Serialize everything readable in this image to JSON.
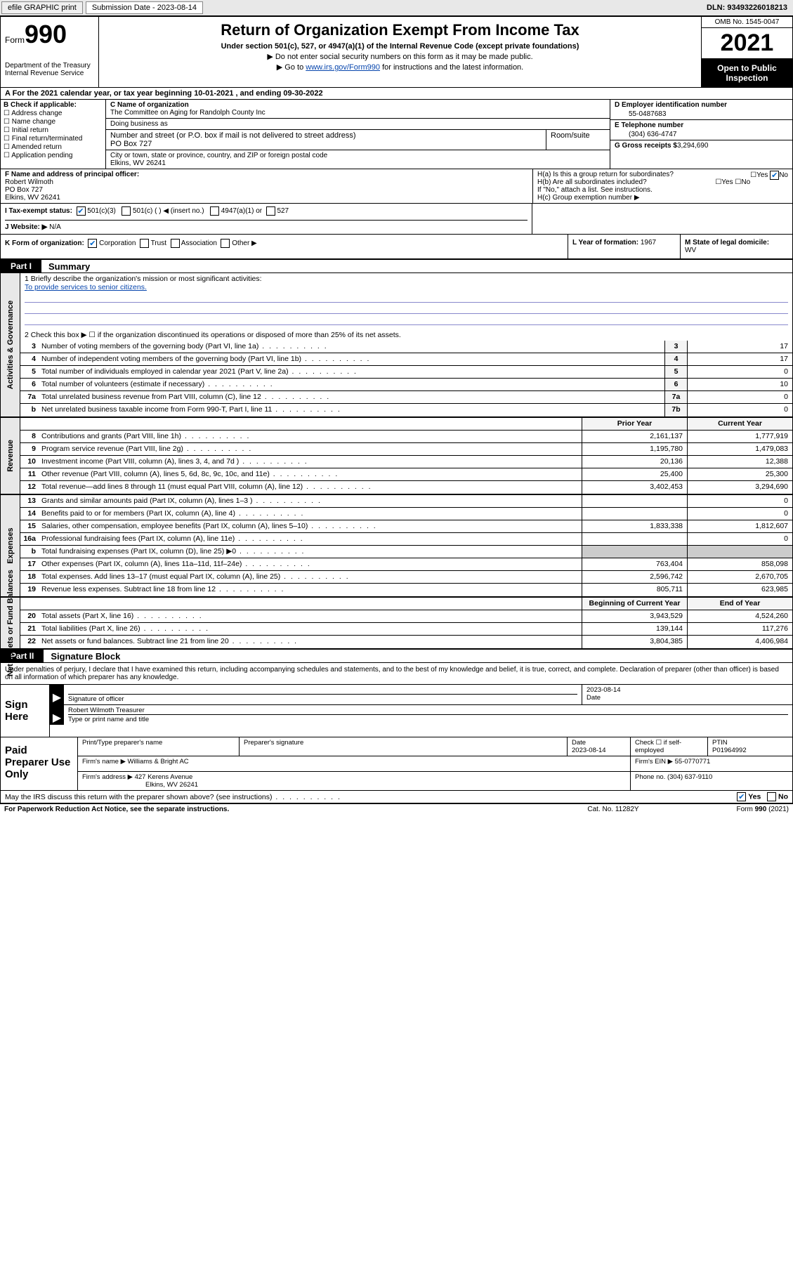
{
  "topbar": {
    "efile": "efile GRAPHIC print",
    "submission_label": "Submission Date - 2023-08-14",
    "dln": "DLN: 93493226018213"
  },
  "header": {
    "form_label": "Form",
    "form_number": "990",
    "dept": "Department of the Treasury",
    "irs": "Internal Revenue Service",
    "title": "Return of Organization Exempt From Income Tax",
    "sub1": "Under section 501(c), 527, or 4947(a)(1) of the Internal Revenue Code (except private foundations)",
    "sub2": "Do not enter social security numbers on this form as it may be made public.",
    "sub3_pre": "Go to ",
    "sub3_link": "www.irs.gov/Form990",
    "sub3_post": " for instructions and the latest information.",
    "omb": "OMB No. 1545-0047",
    "year": "2021",
    "open": "Open to Public Inspection"
  },
  "row_a": "A For the 2021 calendar year, or tax year beginning 10-01-2021   , and ending 09-30-2022",
  "col_b": {
    "label": "B Check if applicable:",
    "items": [
      "Address change",
      "Name change",
      "Initial return",
      "Final return/terminated",
      "Amended return",
      "Application pending"
    ]
  },
  "col_c": {
    "name_label": "C Name of organization",
    "name": "The Committee on Aging for Randolph County Inc",
    "dba_label": "Doing business as",
    "dba": "",
    "street_label": "Number and street (or P.O. box if mail is not delivered to street address)",
    "room_label": "Room/suite",
    "street": "PO Box 727",
    "city_label": "City or town, state or province, country, and ZIP or foreign postal code",
    "city": "Elkins, WV  26241"
  },
  "col_d": {
    "d_label": "D Employer identification number",
    "d_val": "55-0487683",
    "e_label": "E Telephone number",
    "e_val": "(304) 636-4747",
    "g_label": "G Gross receipts $",
    "g_val": "3,294,690"
  },
  "col_f": {
    "label": "F Name and address of principal officer:",
    "name": "Robert Wilmoth",
    "street": "PO Box 727",
    "city": "Elkins, WV  26241"
  },
  "col_h": {
    "ha": "H(a)  Is this a group return for subordinates?",
    "hb": "H(b)  Are all subordinates included?",
    "hb_note": "If \"No,\" attach a list. See instructions.",
    "hc": "H(c)  Group exemption number ▶"
  },
  "row_i": {
    "label": "I   Tax-exempt status:",
    "opt1": "501(c)(3)",
    "opt2": "501(c) (  ) ◀ (insert no.)",
    "opt3": "4947(a)(1) or",
    "opt4": "527"
  },
  "row_j": {
    "label": "J   Website: ▶",
    "val": "N/A"
  },
  "row_k": {
    "label": "K Form of organization:",
    "opts": [
      "Corporation",
      "Trust",
      "Association",
      "Other ▶"
    ],
    "l_label": "L Year of formation:",
    "l_val": "1967",
    "m_label": "M State of legal domicile:",
    "m_val": "WV"
  },
  "part1": {
    "box": "Part I",
    "title": "Summary"
  },
  "tabs": {
    "gov": "Activities & Governance",
    "rev": "Revenue",
    "exp": "Expenses",
    "net": "Net Assets or Fund Balances"
  },
  "mission": {
    "q1": "1  Briefly describe the organization's mission or most significant activities:",
    "text": "To provide services to senior citizens.",
    "q2": "2   Check this box ▶ ☐  if the organization discontinued its operations or disposed of more than 25% of its net assets."
  },
  "gov_rows": [
    {
      "n": "3",
      "d": "Number of voting members of the governing body (Part VI, line 1a)",
      "b": "3",
      "v": "17"
    },
    {
      "n": "4",
      "d": "Number of independent voting members of the governing body (Part VI, line 1b)",
      "b": "4",
      "v": "17"
    },
    {
      "n": "5",
      "d": "Total number of individuals employed in calendar year 2021 (Part V, line 2a)",
      "b": "5",
      "v": "0"
    },
    {
      "n": "6",
      "d": "Total number of volunteers (estimate if necessary)",
      "b": "6",
      "v": "10"
    },
    {
      "n": "7a",
      "d": "Total unrelated business revenue from Part VIII, column (C), line 12",
      "b": "7a",
      "v": "0"
    },
    {
      "n": "b",
      "d": "Net unrelated business taxable income from Form 990-T, Part I, line 11",
      "b": "7b",
      "v": "0"
    }
  ],
  "two_col_hdr": {
    "prior": "Prior Year",
    "curr": "Current Year"
  },
  "rev_rows": [
    {
      "n": "8",
      "d": "Contributions and grants (Part VIII, line 1h)",
      "p": "2,161,137",
      "c": "1,777,919"
    },
    {
      "n": "9",
      "d": "Program service revenue (Part VIII, line 2g)",
      "p": "1,195,780",
      "c": "1,479,083"
    },
    {
      "n": "10",
      "d": "Investment income (Part VIII, column (A), lines 3, 4, and 7d )",
      "p": "20,136",
      "c": "12,388"
    },
    {
      "n": "11",
      "d": "Other revenue (Part VIII, column (A), lines 5, 6d, 8c, 9c, 10c, and 11e)",
      "p": "25,400",
      "c": "25,300"
    },
    {
      "n": "12",
      "d": "Total revenue—add lines 8 through 11 (must equal Part VIII, column (A), line 12)",
      "p": "3,402,453",
      "c": "3,294,690"
    }
  ],
  "exp_rows": [
    {
      "n": "13",
      "d": "Grants and similar amounts paid (Part IX, column (A), lines 1–3 )",
      "p": "",
      "c": "0"
    },
    {
      "n": "14",
      "d": "Benefits paid to or for members (Part IX, column (A), line 4)",
      "p": "",
      "c": "0"
    },
    {
      "n": "15",
      "d": "Salaries, other compensation, employee benefits (Part IX, column (A), lines 5–10)",
      "p": "1,833,338",
      "c": "1,812,607"
    },
    {
      "n": "16a",
      "d": "Professional fundraising fees (Part IX, column (A), line 11e)",
      "p": "",
      "c": "0"
    },
    {
      "n": "b",
      "d": "Total fundraising expenses (Part IX, column (D), line 25) ▶0",
      "p": "",
      "c": "",
      "shade": true
    },
    {
      "n": "17",
      "d": "Other expenses (Part IX, column (A), lines 11a–11d, 11f–24e)",
      "p": "763,404",
      "c": "858,098"
    },
    {
      "n": "18",
      "d": "Total expenses. Add lines 13–17 (must equal Part IX, column (A), line 25)",
      "p": "2,596,742",
      "c": "2,670,705"
    },
    {
      "n": "19",
      "d": "Revenue less expenses. Subtract line 18 from line 12",
      "p": "805,711",
      "c": "623,985"
    }
  ],
  "net_hdr": {
    "prior": "Beginning of Current Year",
    "curr": "End of Year"
  },
  "net_rows": [
    {
      "n": "20",
      "d": "Total assets (Part X, line 16)",
      "p": "3,943,529",
      "c": "4,524,260"
    },
    {
      "n": "21",
      "d": "Total liabilities (Part X, line 26)",
      "p": "139,144",
      "c": "117,276"
    },
    {
      "n": "22",
      "d": "Net assets or fund balances. Subtract line 21 from line 20",
      "p": "3,804,385",
      "c": "4,406,984"
    }
  ],
  "part2": {
    "box": "Part II",
    "title": "Signature Block"
  },
  "perjury": "Under penalties of perjury, I declare that I have examined this return, including accompanying schedules and statements, and to the best of my knowledge and belief, it is true, correct, and complete. Declaration of preparer (other than officer) is based on all information of which preparer has any knowledge.",
  "sign": {
    "here": "Sign Here",
    "sig_label": "Signature of officer",
    "date_label": "Date",
    "date_val": "2023-08-14",
    "name": "Robert Wilmoth Treasurer",
    "name_label": "Type or print name and title"
  },
  "paid": {
    "title": "Paid Preparer Use Only",
    "h1": "Print/Type preparer's name",
    "h2": "Preparer's signature",
    "h3": "Date",
    "h3v": "2023-08-14",
    "h4": "Check ☐ if self-employed",
    "h5": "PTIN",
    "h5v": "P01964992",
    "firm_name_l": "Firm's name    ▶",
    "firm_name": "Williams & Bright AC",
    "firm_ein_l": "Firm's EIN ▶",
    "firm_ein": "55-0770771",
    "firm_addr_l": "Firm's address ▶",
    "firm_addr1": "427 Kerens Avenue",
    "firm_addr2": "Elkins, WV  26241",
    "phone_l": "Phone no.",
    "phone": "(304) 637-9110"
  },
  "footer": {
    "q": "May the IRS discuss this return with the preparer shown above? (see instructions)",
    "yes": "Yes",
    "no": "No",
    "pra": "For Paperwork Reduction Act Notice, see the separate instructions.",
    "cat": "Cat. No. 11282Y",
    "form": "Form 990 (2021)"
  }
}
